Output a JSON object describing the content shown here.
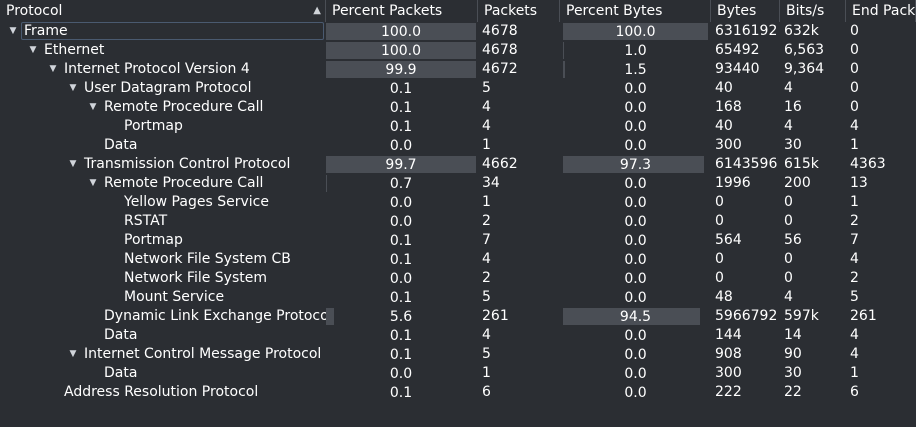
{
  "columns": [
    {
      "key": "protocol",
      "label": "Protocol"
    },
    {
      "key": "pct_packets",
      "label": "Percent Packets"
    },
    {
      "key": "packets",
      "label": "Packets"
    },
    {
      "key": "pct_bytes",
      "label": "Percent Bytes"
    },
    {
      "key": "bytes",
      "label": "Bytes"
    },
    {
      "key": "bits",
      "label": "Bits/s"
    },
    {
      "key": "end_packets",
      "label": "End Packets"
    }
  ],
  "sort_icon": "sort-ascending-icon",
  "rows": [
    {
      "protocol": "Frame",
      "depth": 0,
      "expanded": true,
      "selected": true,
      "pct_packets": "100.0",
      "packets": "4678",
      "pct_bytes": "100.0",
      "bytes": "6316192",
      "bits": "632k",
      "end_packets": "0"
    },
    {
      "protocol": "Ethernet",
      "depth": 1,
      "expanded": true,
      "pct_packets": "100.0",
      "packets": "4678",
      "pct_bytes": "1.0",
      "bytes": "65492",
      "bits": "6,563",
      "end_packets": "0"
    },
    {
      "protocol": "Internet Protocol Version 4",
      "depth": 2,
      "expanded": true,
      "pct_packets": "99.9",
      "packets": "4672",
      "pct_bytes": "1.5",
      "bytes": "93440",
      "bits": "9,364",
      "end_packets": "0"
    },
    {
      "protocol": "User Datagram Protocol",
      "depth": 3,
      "expanded": true,
      "pct_packets": "0.1",
      "packets": "5",
      "pct_bytes": "0.0",
      "bytes": "40",
      "bits": "4",
      "end_packets": "0"
    },
    {
      "protocol": "Remote Procedure Call",
      "depth": 4,
      "expanded": true,
      "pct_packets": "0.1",
      "packets": "4",
      "pct_bytes": "0.0",
      "bytes": "168",
      "bits": "16",
      "end_packets": "0"
    },
    {
      "protocol": "Portmap",
      "depth": 5,
      "pct_packets": "0.1",
      "packets": "4",
      "pct_bytes": "0.0",
      "bytes": "40",
      "bits": "4",
      "end_packets": "4"
    },
    {
      "protocol": "Data",
      "depth": 4,
      "pct_packets": "0.0",
      "packets": "1",
      "pct_bytes": "0.0",
      "bytes": "300",
      "bits": "30",
      "end_packets": "1"
    },
    {
      "protocol": "Transmission Control Protocol",
      "depth": 3,
      "expanded": true,
      "pct_packets": "99.7",
      "packets": "4662",
      "pct_bytes": "97.3",
      "bytes": "6143596",
      "bits": "615k",
      "end_packets": "4363"
    },
    {
      "protocol": "Remote Procedure Call",
      "depth": 4,
      "expanded": true,
      "pct_packets": "0.7",
      "packets": "34",
      "pct_bytes": "0.0",
      "bytes": "1996",
      "bits": "200",
      "end_packets": "13"
    },
    {
      "protocol": "Yellow Pages Service",
      "depth": 5,
      "pct_packets": "0.0",
      "packets": "1",
      "pct_bytes": "0.0",
      "bytes": "0",
      "bits": "0",
      "end_packets": "1"
    },
    {
      "protocol": "RSTAT",
      "depth": 5,
      "pct_packets": "0.0",
      "packets": "2",
      "pct_bytes": "0.0",
      "bytes": "0",
      "bits": "0",
      "end_packets": "2"
    },
    {
      "protocol": "Portmap",
      "depth": 5,
      "pct_packets": "0.1",
      "packets": "7",
      "pct_bytes": "0.0",
      "bytes": "564",
      "bits": "56",
      "end_packets": "7"
    },
    {
      "protocol": "Network File System CB",
      "depth": 5,
      "pct_packets": "0.1",
      "packets": "4",
      "pct_bytes": "0.0",
      "bytes": "0",
      "bits": "0",
      "end_packets": "4"
    },
    {
      "protocol": "Network File System",
      "depth": 5,
      "pct_packets": "0.0",
      "packets": "2",
      "pct_bytes": "0.0",
      "bytes": "0",
      "bits": "0",
      "end_packets": "2"
    },
    {
      "protocol": "Mount Service",
      "depth": 5,
      "pct_packets": "0.1",
      "packets": "5",
      "pct_bytes": "0.0",
      "bytes": "48",
      "bits": "4",
      "end_packets": "5"
    },
    {
      "protocol": "Dynamic Link Exchange Protocol",
      "depth": 4,
      "pct_packets": "5.6",
      "packets": "261",
      "pct_bytes": "94.5",
      "bytes": "5966792",
      "bits": "597k",
      "end_packets": "261"
    },
    {
      "protocol": "Data",
      "depth": 4,
      "pct_packets": "0.1",
      "packets": "4",
      "pct_bytes": "0.0",
      "bytes": "144",
      "bits": "14",
      "end_packets": "4"
    },
    {
      "protocol": "Internet Control Message Protocol",
      "depth": 3,
      "expanded": true,
      "pct_packets": "0.1",
      "packets": "5",
      "pct_bytes": "0.0",
      "bytes": "908",
      "bits": "90",
      "end_packets": "4"
    },
    {
      "protocol": "Data",
      "depth": 4,
      "pct_packets": "0.0",
      "packets": "1",
      "pct_bytes": "0.0",
      "bytes": "300",
      "bits": "30",
      "end_packets": "1"
    },
    {
      "protocol": "Address Resolution Protocol",
      "depth": 2,
      "pct_packets": "0.1",
      "packets": "6",
      "pct_bytes": "0.0",
      "bytes": "222",
      "bits": "22",
      "end_packets": "6"
    }
  ]
}
